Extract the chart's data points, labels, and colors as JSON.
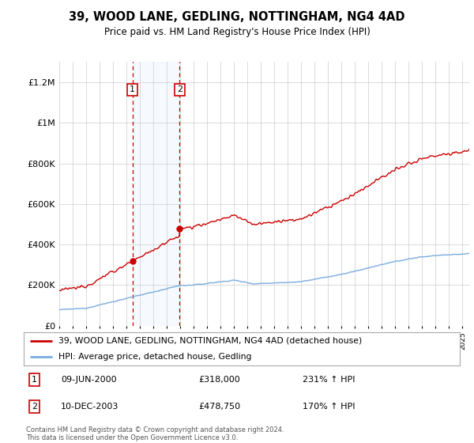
{
  "title": "39, WOOD LANE, GEDLING, NOTTINGHAM, NG4 4AD",
  "subtitle": "Price paid vs. HM Land Registry's House Price Index (HPI)",
  "hpi_label": "HPI: Average price, detached house, Gedling",
  "property_label": "39, WOOD LANE, GEDLING, NOTTINGHAM, NG4 4AD (detached house)",
  "sale1_date": "09-JUN-2000",
  "sale1_price": 318000,
  "sale1_hpi_pct": "231% ↑ HPI",
  "sale2_date": "10-DEC-2003",
  "sale2_price": 478750,
  "sale2_hpi_pct": "170% ↑ HPI",
  "footer": "Contains HM Land Registry data © Crown copyright and database right 2024.\nThis data is licensed under the Open Government Licence v3.0.",
  "hpi_color": "#7aabe0",
  "property_color": "#cc0000",
  "background_color": "#ffffff",
  "grid_color": "#cccccc",
  "sale_region_color": "#ddeeff",
  "sale_dashed_color": "#cc0000",
  "ylim": [
    0,
    1300000
  ],
  "yticks": [
    0,
    200000,
    400000,
    600000,
    800000,
    1000000,
    1200000
  ],
  "ytick_labels": [
    "£0",
    "£200K",
    "£400K",
    "£600K",
    "£800K",
    "£1M",
    "£1.2M"
  ],
  "xstart": 1995.0,
  "xend": 2025.5,
  "sale1_x": 2000.44,
  "sale2_x": 2003.95
}
